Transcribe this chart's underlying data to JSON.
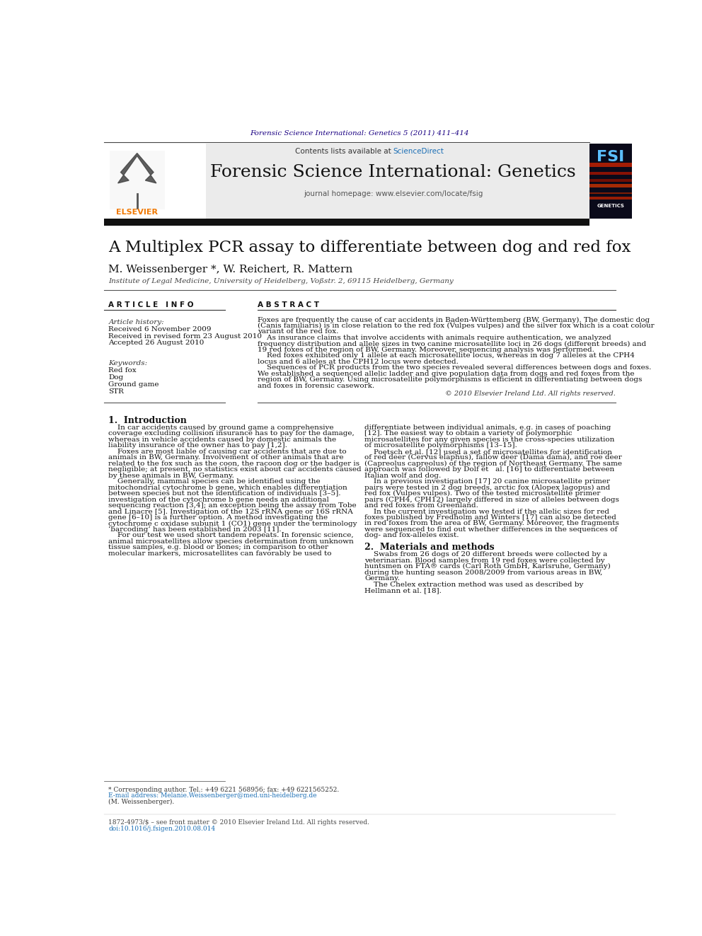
{
  "journal_ref": "Forensic Science International: Genetics 5 (2011) 411–414",
  "header_text": "Contents lists available at ScienceDirect",
  "journal_name": "Forensic Science International: Genetics",
  "journal_homepage": "journal homepage: www.elsevier.com/locate/fsig",
  "paper_title": "A Multiplex PCR assay to differentiate between dog and red fox",
  "authors": "M. Weissenberger *, W. Reichert, R. Mattern",
  "affiliation": "Institute of Legal Medicine, University of Heidelberg, Voßstr. 2, 69115 Heidelberg, Germany",
  "article_info_header": "A R T I C L E   I N F O",
  "abstract_header": "A B S T R A C T",
  "article_history_label": "Article history:",
  "received": "Received 6 November 2009",
  "revised": "Received in revised form 23 August 2010",
  "accepted": "Accepted 26 August 2010",
  "keywords_label": "Keywords:",
  "keywords": [
    "Red fox",
    "Dog",
    "Ground game",
    "STR"
  ],
  "copyright": "© 2010 Elsevier Ireland Ltd. All rights reserved.",
  "intro_header": "1.  Introduction",
  "section2_header": "2.  Materials and methods",
  "footnote1": "* Corresponding author. Tel.: +49 6221 568956; fax: +49 6221565252.",
  "footnote2": "E-mail address: Melanie.Weissenberger@med.uni-heidelberg.de",
  "footnote3": "(M. Weissenberger).",
  "footer1": "1872-4973/$ – see front matter © 2010 Elsevier Ireland Ltd. All rights reserved.",
  "footer2": "doi:10.1016/j.fsigen.2010.08.014",
  "bg_color": "#ffffff",
  "header_bg": "#e8e8e8",
  "dark_bar_color": "#1a1a1a",
  "journal_ref_color": "#1a0082",
  "sciencedirect_color": "#1a6eb5",
  "elsevier_orange": "#f07800",
  "link_color": "#1a6eb5",
  "abstract_lines": [
    "Foxes are frequently the cause of car accidents in Baden-Württemberg (BW, Germany). The domestic dog",
    "(Canis familiaris) is in close relation to the red fox (Vulpes vulpes) and the silver fox which is a coat colour",
    "variant of the red fox.",
    "    As insurance claims that involve accidents with animals require authentication, we analyzed",
    "frequency distribution and allele sizes in two canine microsatellite loci in 26 dogs (different breeds) and",
    "19 red foxes of the region of BW, Germany. Moreover, sequencing analysis was performed.",
    "    Red foxes exhibited only 1 allele at each microsatellite locus, whereas in dog 7 alleles at the CPH4",
    "locus and 6 alleles at the CPH12 locus were detected.",
    "    Sequences of PCR products from the two species revealed several differences between dogs and foxes.",
    "We established a sequenced allelic ladder and give population data from dogs and red foxes from the",
    "region of BW, Germany. Using microsatellite polymorphisms is efficient in differentiating between dogs",
    "and foxes in forensic casework."
  ],
  "intro_col1_lines": [
    "    In car accidents caused by ground game a comprehensive",
    "coverage excluding collision insurance has to pay for the damage,",
    "whereas in vehicle accidents caused by domestic animals the",
    "liability insurance of the owner has to pay [1,2].",
    "    Foxes are most liable of causing car accidents that are due to",
    "animals in BW, Germany. Involvement of other animals that are",
    "related to the fox such as the coon, the racoon dog or the badger is",
    "negligible; at present, no statistics exist about car accidents caused",
    "by these animals in BW, Germany.",
    "    Generally, mammal species can be identified using the",
    "mitochondrial cytochrome b gene, which enables differentiation",
    "between species but not the identification of individuals [3–5].",
    "investigation of the cytochrome b gene needs an additional",
    "sequencing reaction [3,4]; an exception being the assay from Tobe",
    "and Linacre [5]. Investigation of the 12S rRNA gene or 16S rRNA",
    "gene [6–10] is a further option. A method investigating the",
    "cytochrome c oxidase subunit 1 (CO1) gene under the terminology",
    "‘barcoding’ has been established in 2003 [11].",
    "    For our test we used short tandem repeats. In forensic science,",
    "animal microsatellites allow species determination from unknown",
    "tissue samples, e.g. blood or bones; in comparison to other",
    "molecular markers, microsatellites can favorably be used to"
  ],
  "intro_col2_lines": [
    "differentiate between individual animals, e.g. in cases of poaching",
    "[12]. The easiest way to obtain a variety of polymorphic",
    "microsatellites for any given species is the cross-species utilization",
    "of microsatellite polymorphisms [13–15].",
    "    Poetsch et al. [12] used a set of microsatellites for identification",
    "of red deer (Cervus elaphus), fallow deer (Dama dama), and roe deer",
    "(Capreolus capreolus) of the region of Northeast Germany. The same",
    "approach was followed by Dolf et   al. [16] to differentiate between",
    "Italian wolf and dog.",
    "    In a previous investigation [17] 20 canine microsatellite primer",
    "pairs were tested in 2 dog breeds, arctic fox (Alopex lagopus) and",
    "red fox (Vulpes vulpes). Two of the tested microsatellite primer",
    "pairs (CPH4, CPH12) largely differed in size of alleles between dogs",
    "and red foxes from Greenland.",
    "    In the current investigation we tested if the allelic sizes for red",
    "foxes published by Fredholm and Winters [17] can also be detected",
    "in red foxes from the area of BW, Germany. Moreover, the fragments",
    "were sequenced to find out whether differences in the sequences of",
    "dog- and fox-alleles exist."
  ],
  "sec2_col2_lines": [
    "    Swabs from 26 dogs of 20 different breeds were collected by a",
    "veterinarian. Blood samples from 19 red foxes were collected by",
    "huntsmen on FTA® cards (Carl Roth GmbH, Karlsruhe, Germany)",
    "during the hunting season 2008/2009 from various areas in BW,",
    "Germany.",
    "    The Chelex extraction method was used as described by",
    "Hellmann et al. [18]."
  ]
}
